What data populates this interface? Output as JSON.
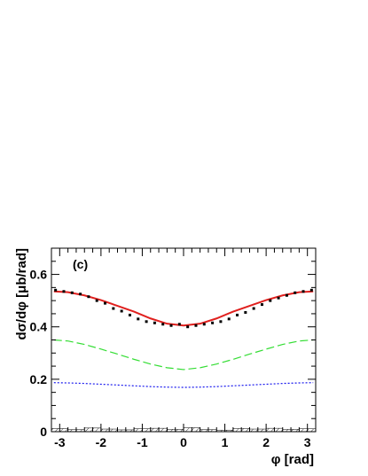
{
  "chart_data": {
    "type": "line",
    "panel_label": "(c)",
    "xlabel": "φ [rad]",
    "ylabel": "dσ/dφ [μb/rad]",
    "xlim": [
      -3.2,
      3.2
    ],
    "ylim": [
      0,
      0.7
    ],
    "x_ticks": [
      -3,
      -2,
      -1,
      0,
      1,
      2,
      3
    ],
    "x_tick_labels": [
      "-3",
      "-2",
      "-1",
      "0",
      "1",
      "2",
      "3"
    ],
    "y_ticks": [
      0,
      0.2,
      0.4,
      0.6
    ],
    "y_tick_labels": [
      "0",
      "0.2",
      "0.4",
      "0.6"
    ],
    "grid": false,
    "series": [
      {
        "style": "markers",
        "color": "#000000",
        "x": [
          -3.1,
          -2.9,
          -2.7,
          -2.5,
          -2.3,
          -2.1,
          -1.9,
          -1.7,
          -1.5,
          -1.3,
          -1.1,
          -0.9,
          -0.7,
          -0.5,
          -0.3,
          -0.1,
          0.1,
          0.3,
          0.5,
          0.7,
          0.9,
          1.1,
          1.3,
          1.5,
          1.7,
          1.9,
          2.1,
          2.3,
          2.5,
          2.7,
          2.9,
          3.1
        ],
        "values": [
          0.54,
          0.535,
          0.53,
          0.525,
          0.515,
          0.5,
          0.49,
          0.47,
          0.46,
          0.445,
          0.43,
          0.42,
          0.415,
          0.41,
          0.405,
          0.41,
          0.4,
          0.405,
          0.41,
          0.415,
          0.42,
          0.43,
          0.445,
          0.455,
          0.47,
          0.485,
          0.5,
          0.51,
          0.52,
          0.53,
          0.535,
          0.54
        ]
      },
      {
        "style": "solid",
        "color": "#e0201e",
        "x": [
          -3.14,
          -2.8,
          -2.4,
          -2.0,
          -1.6,
          -1.2,
          -0.8,
          -0.4,
          0.0,
          0.4,
          0.8,
          1.2,
          1.6,
          2.0,
          2.4,
          2.8,
          3.14
        ],
        "values": [
          0.535,
          0.532,
          0.52,
          0.502,
          0.48,
          0.458,
          0.432,
          0.412,
          0.405,
          0.412,
          0.432,
          0.458,
          0.48,
          0.502,
          0.52,
          0.532,
          0.535
        ]
      },
      {
        "style": "dashed",
        "color": "#33dd33",
        "x": [
          -3.14,
          -2.8,
          -2.4,
          -2.0,
          -1.6,
          -1.2,
          -0.8,
          -0.4,
          0.0,
          0.4,
          0.8,
          1.2,
          1.6,
          2.0,
          2.4,
          2.8,
          3.14
        ],
        "values": [
          0.35,
          0.346,
          0.333,
          0.315,
          0.296,
          0.276,
          0.258,
          0.244,
          0.237,
          0.244,
          0.258,
          0.276,
          0.296,
          0.315,
          0.333,
          0.346,
          0.35
        ]
      },
      {
        "style": "dotted",
        "color": "#1a1aee",
        "x": [
          -3.14,
          -2.8,
          -2.4,
          -2.0,
          -1.6,
          -1.2,
          -0.8,
          -0.4,
          0.0,
          0.4,
          0.8,
          1.2,
          1.6,
          2.0,
          2.4,
          2.8,
          3.14
        ],
        "values": [
          0.187,
          0.186,
          0.184,
          0.181,
          0.178,
          0.175,
          0.172,
          0.17,
          0.169,
          0.17,
          0.172,
          0.175,
          0.178,
          0.181,
          0.184,
          0.186,
          0.187
        ]
      },
      {
        "style": "hatched-histogram",
        "color": "#000000",
        "x": [
          -3.0,
          -2.6,
          -2.2,
          -1.8,
          -1.4,
          -1.0,
          -0.6,
          -0.2,
          0.2,
          0.6,
          1.0,
          1.4,
          1.8,
          2.2,
          2.6,
          3.0
        ],
        "values": [
          0.012,
          0.008,
          0.014,
          0.01,
          0.007,
          0.011,
          0.013,
          0.009,
          0.015,
          0.008,
          0.006,
          0.012,
          0.01,
          0.013,
          0.009,
          0.011
        ]
      }
    ]
  }
}
